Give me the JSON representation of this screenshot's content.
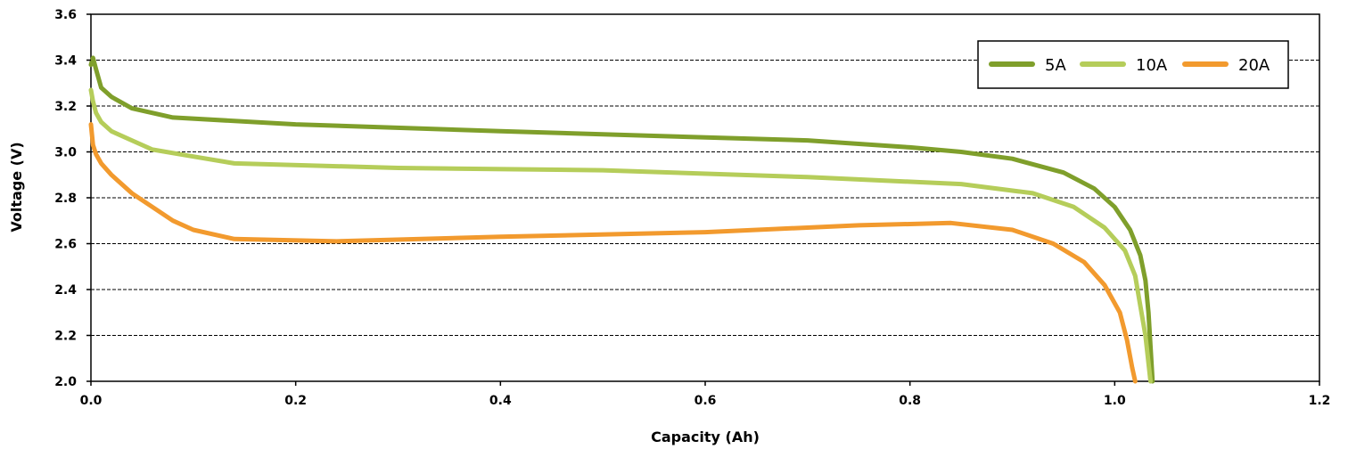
{
  "chart_data": {
    "type": "line",
    "title": "",
    "xlabel": "Capacity (Ah)",
    "ylabel": "Voltage (V)",
    "xlim": [
      0.0,
      1.2
    ],
    "ylim": [
      2.0,
      3.6
    ],
    "x_ticks": [
      "0.0",
      "0.2",
      "0.4",
      "0.6",
      "0.8",
      "1.0",
      "1.2"
    ],
    "y_ticks": [
      "2.0",
      "2.2",
      "2.4",
      "2.6",
      "2.8",
      "3.0",
      "3.2",
      "3.4",
      "3.6"
    ],
    "x_tick_values": [
      0.0,
      0.2,
      0.4,
      0.6,
      0.8,
      1.0,
      1.2
    ],
    "y_tick_values": [
      2.0,
      2.2,
      2.4,
      2.6,
      2.8,
      3.0,
      3.2,
      3.4,
      3.6
    ],
    "grid": "horizontal dashed",
    "legend_position": "top-right",
    "series": [
      {
        "name": "5A",
        "color": "#7f9f2b",
        "points": [
          [
            0.0,
            3.38
          ],
          [
            0.002,
            3.41
          ],
          [
            0.005,
            3.36
          ],
          [
            0.01,
            3.28
          ],
          [
            0.02,
            3.24
          ],
          [
            0.04,
            3.19
          ],
          [
            0.08,
            3.15
          ],
          [
            0.2,
            3.12
          ],
          [
            0.4,
            3.09
          ],
          [
            0.55,
            3.07
          ],
          [
            0.7,
            3.05
          ],
          [
            0.8,
            3.02
          ],
          [
            0.85,
            3.0
          ],
          [
            0.9,
            2.97
          ],
          [
            0.95,
            2.91
          ],
          [
            0.98,
            2.84
          ],
          [
            1.0,
            2.76
          ],
          [
            1.015,
            2.66
          ],
          [
            1.025,
            2.55
          ],
          [
            1.03,
            2.44
          ],
          [
            1.033,
            2.3
          ],
          [
            1.035,
            2.15
          ],
          [
            1.037,
            2.0
          ]
        ]
      },
      {
        "name": "10A",
        "color": "#b5cd5a",
        "points": [
          [
            0.0,
            3.27
          ],
          [
            0.002,
            3.22
          ],
          [
            0.005,
            3.17
          ],
          [
            0.01,
            3.13
          ],
          [
            0.02,
            3.09
          ],
          [
            0.04,
            3.05
          ],
          [
            0.06,
            3.01
          ],
          [
            0.1,
            2.98
          ],
          [
            0.14,
            2.95
          ],
          [
            0.3,
            2.93
          ],
          [
            0.5,
            2.92
          ],
          [
            0.7,
            2.89
          ],
          [
            0.85,
            2.86
          ],
          [
            0.92,
            2.82
          ],
          [
            0.96,
            2.76
          ],
          [
            0.99,
            2.67
          ],
          [
            1.01,
            2.57
          ],
          [
            1.02,
            2.46
          ],
          [
            1.025,
            2.33
          ],
          [
            1.03,
            2.2
          ],
          [
            1.035,
            2.0
          ]
        ]
      },
      {
        "name": "20A",
        "color": "#f29a2e",
        "points": [
          [
            0.0,
            3.12
          ],
          [
            0.002,
            3.03
          ],
          [
            0.005,
            2.99
          ],
          [
            0.01,
            2.95
          ],
          [
            0.02,
            2.9
          ],
          [
            0.04,
            2.82
          ],
          [
            0.06,
            2.76
          ],
          [
            0.08,
            2.7
          ],
          [
            0.1,
            2.66
          ],
          [
            0.14,
            2.62
          ],
          [
            0.24,
            2.61
          ],
          [
            0.4,
            2.63
          ],
          [
            0.6,
            2.65
          ],
          [
            0.75,
            2.68
          ],
          [
            0.84,
            2.69
          ],
          [
            0.9,
            2.66
          ],
          [
            0.94,
            2.6
          ],
          [
            0.97,
            2.52
          ],
          [
            0.99,
            2.42
          ],
          [
            1.005,
            2.3
          ],
          [
            1.012,
            2.18
          ],
          [
            1.017,
            2.06
          ],
          [
            1.02,
            2.0
          ]
        ]
      }
    ]
  }
}
